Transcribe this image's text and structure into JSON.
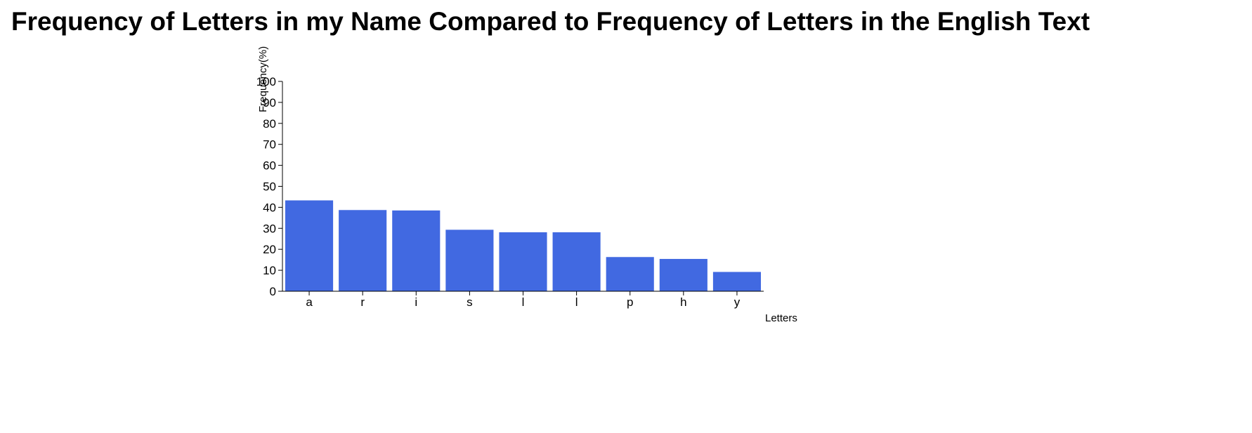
{
  "chart_data": {
    "type": "bar",
    "title": "Frequency of Letters in my Name Compared to Frequency of Letters in the English Text",
    "xlabel": "Letters",
    "ylabel": "Frequency(%)",
    "categories": [
      "a",
      "r",
      "i",
      "s",
      "l",
      "l",
      "p",
      "h",
      "y"
    ],
    "values": [
      43.3,
      38.7,
      38.5,
      29.3,
      28.1,
      28.1,
      16.3,
      15.4,
      9.2
    ],
    "ylim": [
      0,
      100
    ],
    "yticks": [
      "0",
      "10",
      "20",
      "30",
      "40",
      "50",
      "60",
      "70",
      "80",
      "90",
      "100"
    ],
    "bar_color": "#4169e1",
    "grid": false,
    "legend": "none"
  }
}
